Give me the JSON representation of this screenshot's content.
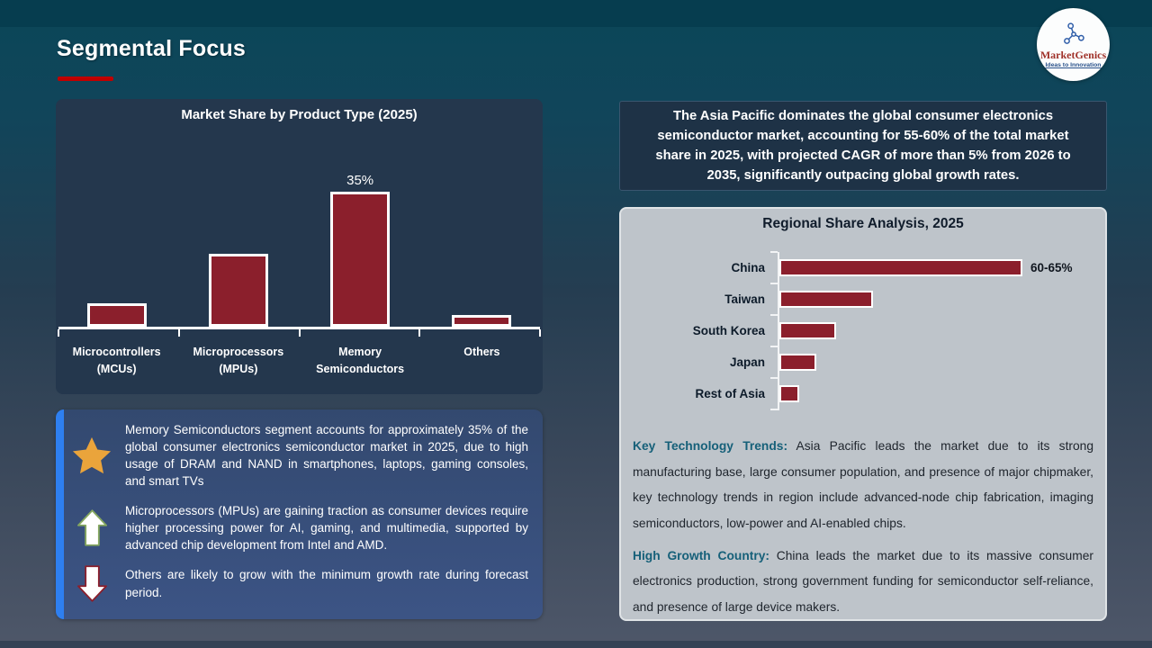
{
  "slide": {
    "title": "Segmental Focus",
    "accent_color": "#c00000"
  },
  "logo": {
    "brand": "MarketGenics",
    "tagline": "Ideas to Innovation"
  },
  "chart_data": [
    {
      "type": "bar",
      "orientation": "vertical",
      "title": "Market Share by Product Type (2025)",
      "categories": [
        "Microcontrollers (MCUs)",
        "Microprocessors (MPUs)",
        "Memory Semiconductors",
        "Others"
      ],
      "values": [
        6,
        19,
        35,
        3
      ],
      "unit": "%",
      "data_labels": [
        null,
        null,
        "35%",
        null
      ],
      "bar_color": "#8b1f2c",
      "ylim": [
        0,
        40
      ],
      "grid": false,
      "legend": false
    },
    {
      "type": "bar",
      "orientation": "horizontal",
      "title": "Regional Share Analysis, 2025",
      "categories": [
        "China",
        "Taiwan",
        "South Korea",
        "Japan",
        "Rest of Asia"
      ],
      "values": [
        62.5,
        24,
        14.5,
        9.5,
        5
      ],
      "unit": "%",
      "data_labels": [
        "60-65%",
        null,
        null,
        null,
        null
      ],
      "bar_color": "#8b1f2c",
      "xlim": [
        0,
        80
      ],
      "grid": false,
      "legend": false
    }
  ],
  "apac_callout": {
    "text": "The Asia Pacific dominates the global consumer electronics semiconductor market, accounting for 55-60% of the total market share in 2025, with projected CAGR of more than 5% from 2026 to 2035, significantly outpacing global growth rates."
  },
  "insights": {
    "items": [
      {
        "icon": "star-icon",
        "text": "Memory Semiconductors segment accounts for approximately 35% of the global consumer electronics semiconductor market in 2025, due to high usage of DRAM and NAND in smartphones, laptops, gaming consoles, and smart TVs"
      },
      {
        "icon": "up-arrow-icon",
        "text": "Microprocessors (MPUs) are gaining traction as consumer devices require higher processing power for AI, gaming, and multimedia, supported by advanced chip development from Intel and AMD."
      },
      {
        "icon": "down-arrow-icon",
        "text": "Others are likely to grow with the minimum growth rate during forecast period."
      }
    ]
  },
  "regional_notes": {
    "paragraphs": [
      {
        "label": "Key Technology Trends:",
        "text": "Asia Pacific leads the market due to its strong manufacturing base, large consumer population, and presence of major chipmaker, key technology trends in region include advanced-node chip fabrication, imaging semiconductors, low-power and AI-enabled chips."
      },
      {
        "label": "High Growth Country:",
        "text": "China leads the market due to its massive consumer electronics production, strong government funding for semiconductor self-reliance, and presence of large device makers."
      }
    ]
  }
}
